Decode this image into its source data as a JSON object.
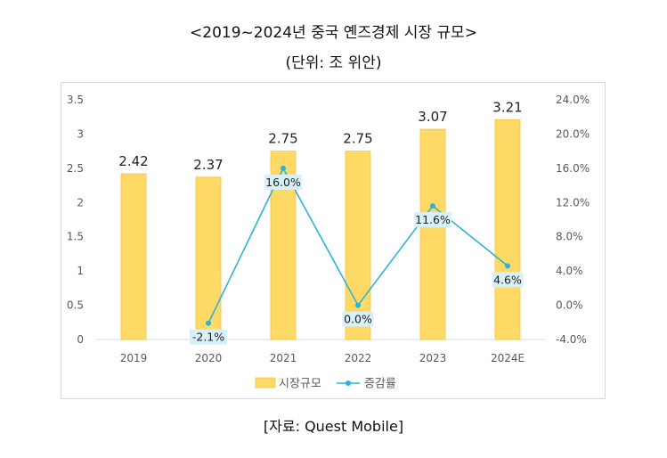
{
  "header": {
    "title": "<2019~2024년 중국 옌즈경제 시장 규모>",
    "subtitle": "(단위: 조 위안)"
  },
  "source": "[자료: Quest Mobile]",
  "colors": {
    "bar": "#ffd966",
    "bar_stroke": "#f4c542",
    "line": "#2bb3d9",
    "label_bg": "#d6f1f8",
    "axis_text": "#595959",
    "gridline": "#d9d9d9"
  },
  "chart_data": {
    "type": "bar",
    "categories": [
      "2019",
      "2020",
      "2021",
      "2022",
      "2023",
      "2024E"
    ],
    "series": [
      {
        "name": "시장규모",
        "type": "bar",
        "axis": "left",
        "values": [
          2.42,
          2.37,
          2.75,
          2.75,
          3.07,
          3.21
        ],
        "labels": [
          "2.42",
          "2.37",
          "2.75",
          "2.75",
          "3.07",
          "3.21"
        ]
      },
      {
        "name": "증감률",
        "type": "line",
        "axis": "right",
        "values": [
          null,
          -2.1,
          16.0,
          0.0,
          11.6,
          4.6
        ],
        "labels": [
          "",
          "-2.1%",
          "16.0%",
          "0.0%",
          "11.6%",
          "4.6%"
        ]
      }
    ],
    "y_left": {
      "ylim": [
        0,
        3.5
      ],
      "ticks": [
        "0",
        "0.5",
        "1",
        "1.5",
        "2",
        "2.5",
        "3",
        "3.5"
      ]
    },
    "y_right": {
      "ylim": [
        -4.0,
        24.0
      ],
      "ticks": [
        "-4.0%",
        "0.0%",
        "4.0%",
        "8.0%",
        "12.0%",
        "16.0%",
        "20.0%",
        "24.0%"
      ]
    },
    "grid": false,
    "legend": "bottom"
  }
}
